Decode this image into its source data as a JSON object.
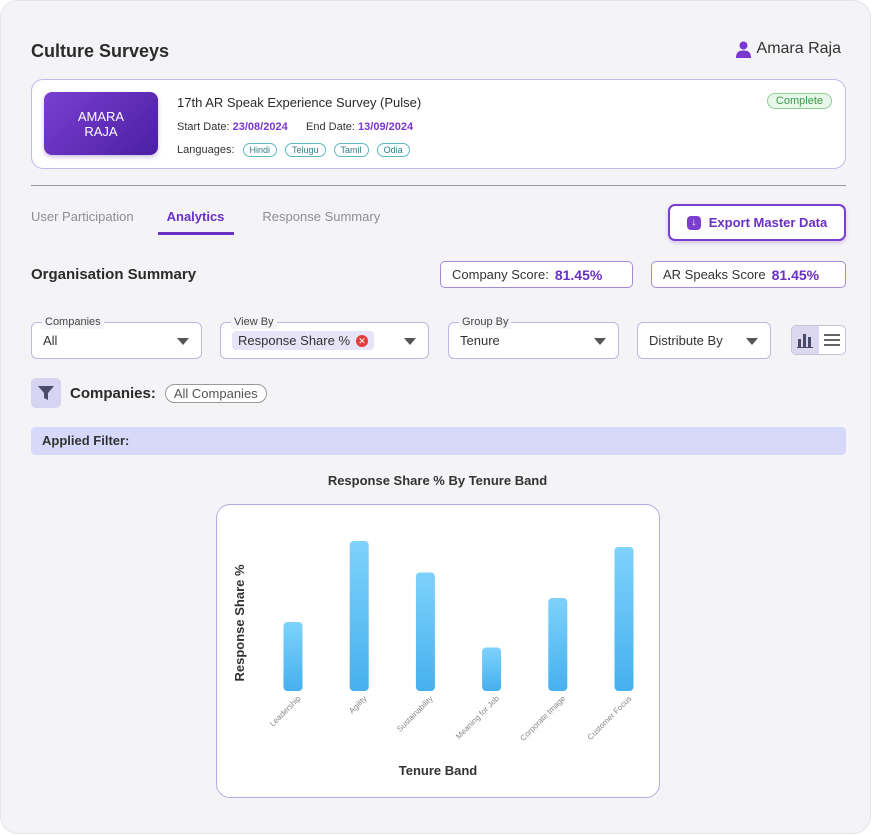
{
  "header": {
    "title": "Culture Surveys",
    "user_name": "Amara Raja",
    "user_icon": "person-icon"
  },
  "survey": {
    "logo_line1": "AMARA",
    "logo_line2": "RAJA",
    "name": "17th AR Speak Experience Survey (Pulse)",
    "status": "Complete",
    "start_label": "Start Date:",
    "start_date": "23/08/2024",
    "end_label": "End Date:",
    "end_date": "13/09/2024",
    "languages_label": "Languages:",
    "languages": [
      "Hindi",
      "Telugu",
      "Tamil",
      "Odia"
    ]
  },
  "tabs": [
    {
      "label": "User Participation",
      "active": false
    },
    {
      "label": "Analytics",
      "active": true
    },
    {
      "label": "Response Summary",
      "active": false
    }
  ],
  "export_button": {
    "label": "Export Master Data",
    "icon": "download-icon"
  },
  "summary": {
    "title": "Organisation Summary",
    "company_score_label": "Company Score:",
    "company_score": "81.45%",
    "ar_score_label": "AR Speaks Score",
    "ar_score": "81.45%"
  },
  "filters": {
    "companies": {
      "legend": "Companies",
      "value": "All"
    },
    "view_by": {
      "legend": "View By",
      "value": "Response Share %"
    },
    "group_by": {
      "legend": "Group By",
      "value": "Tenure"
    },
    "distribute_by": {
      "placeholder": "Distribute By"
    }
  },
  "companies_filter": {
    "label": "Companies:",
    "chip": "All Companies"
  },
  "applied_filter": {
    "label": "Applied Filter:"
  },
  "chart_data": {
    "type": "bar",
    "title": "Response Share % By Tenure Band",
    "xlabel": "Tenure Band",
    "ylabel": "Response Share %",
    "categories": [
      "Leadership",
      "Agility",
      "Sustainability",
      "Meaning for Job",
      "Corporate Image",
      "Customer Focus"
    ],
    "values": [
      46,
      100,
      79,
      29,
      62,
      96
    ],
    "ylim": [
      0,
      100
    ],
    "bar_color": "#4fb8f0",
    "grid": false
  }
}
